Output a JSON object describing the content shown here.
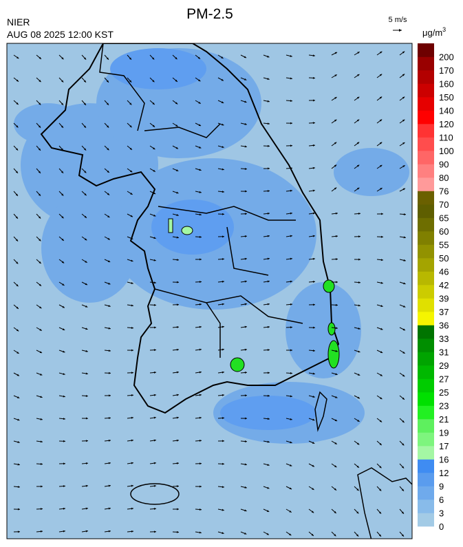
{
  "header": {
    "title": "PM-2.5",
    "source": "NIER",
    "time": "AUG 08 2025 12:00 KST",
    "wind_scale": "5 m/s"
  },
  "colorbar": {
    "unit": "μg/m",
    "unit_superscript": "3",
    "levels": [
      0,
      3,
      6,
      9,
      12,
      16,
      17,
      19,
      21,
      23,
      25,
      27,
      29,
      31,
      33,
      36,
      37,
      39,
      42,
      46,
      50,
      55,
      60,
      65,
      70,
      76,
      80,
      90,
      100,
      110,
      120,
      140,
      150,
      160,
      170,
      200
    ],
    "colors": [
      "#a3cbe6",
      "#88bbea",
      "#6faaec",
      "#5a9cee",
      "#3f8cf2",
      "#a4f7a4",
      "#7ef57e",
      "#5ef05e",
      "#22f022",
      "#00e000",
      "#00cc00",
      "#00b800",
      "#00a400",
      "#008e00",
      "#007400",
      "#f5f500",
      "#e0e000",
      "#cccc00",
      "#b8b800",
      "#a4a400",
      "#929200",
      "#808000",
      "#6e6e00",
      "#5e5e00",
      "#6a6000",
      "#ff9a9a",
      "#ff8080",
      "#ff6666",
      "#ff4d4d",
      "#ff3333",
      "#ff0000",
      "#e60000",
      "#cc0000",
      "#b30000",
      "#990000",
      "#6e0000"
    ]
  }
}
